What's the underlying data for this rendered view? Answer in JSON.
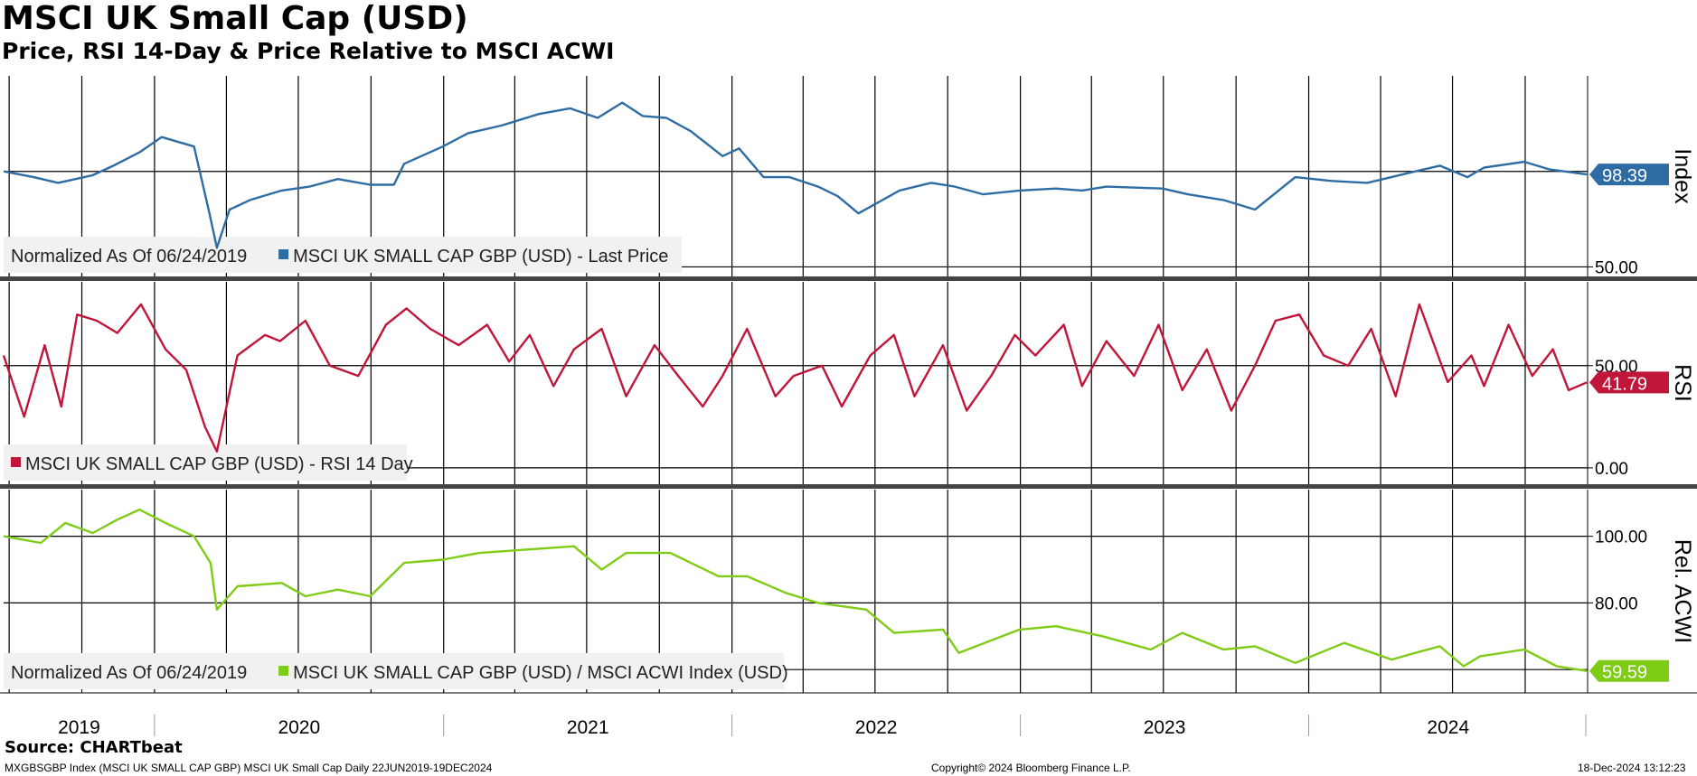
{
  "header": {
    "title": "MSCI UK Small Cap (USD)",
    "subtitle": "Price, RSI 14-Day & Price Relative to MSCI ACWI"
  },
  "footer": {
    "source": "Source: CHARTbeat",
    "left": "MXGBSGBP Index (MSCI UK SMALL CAP GBP) MSCI UK Small Cap  Daily 22JUN2019-19DEC2024",
    "center": "Copyright© 2024 Bloomberg Finance L.P.",
    "right": "18-Dec-2024 13:12:23"
  },
  "colors": {
    "price": "#2e6da4",
    "rsi": "#c0163a",
    "rel": "#7fcc17"
  },
  "chart_data": [
    {
      "type": "line",
      "panel": "price",
      "axis_label": "Index",
      "legend_prefix": "Normalized As Of 06/24/2019",
      "legend": "MSCI UK SMALL CAP GBP (USD) - Last Price",
      "last_value_label": "98.39",
      "ylim": [
        45,
        150
      ],
      "yticks": [
        50
      ],
      "ytick_labels": [
        "50.00"
      ],
      "reference_line": 100,
      "x_start": "2019-06-24",
      "x_end": "2024-12-19",
      "x_year_labels": [
        "2019",
        "2020",
        "2021",
        "2022",
        "2023",
        "2024"
      ],
      "series": [
        {
          "dates": [
            "2019-06-24",
            "2019-08-01",
            "2019-09-01",
            "2019-10-15",
            "2019-11-10",
            "2019-12-13",
            "2020-01-10",
            "2020-02-20",
            "2020-03-10",
            "2020-03-20",
            "2020-04-05",
            "2020-05-01",
            "2020-06-10",
            "2020-07-15",
            "2020-08-20",
            "2020-09-30",
            "2020-10-30",
            "2020-11-12",
            "2020-12-31",
            "2021-02-01",
            "2021-03-15",
            "2021-05-01",
            "2021-06-10",
            "2021-07-15",
            "2021-08-15",
            "2021-09-10",
            "2021-10-10",
            "2021-11-10",
            "2021-12-20",
            "2022-01-10",
            "2022-02-10",
            "2022-03-15",
            "2022-04-20",
            "2022-05-15",
            "2022-06-10",
            "2022-08-01",
            "2022-09-10",
            "2022-10-10",
            "2022-11-15",
            "2022-12-31",
            "2023-02-15",
            "2023-03-20",
            "2023-04-20",
            "2023-06-30",
            "2023-08-01",
            "2023-09-15",
            "2023-10-25",
            "2023-12-15",
            "2024-01-30",
            "2024-03-15",
            "2024-05-15",
            "2024-06-15",
            "2024-07-20",
            "2024-08-10",
            "2024-09-30",
            "2024-11-01",
            "2024-12-18"
          ],
          "values": [
            100,
            97,
            94,
            98,
            103,
            110,
            118,
            113,
            79,
            60,
            80,
            85,
            90,
            92,
            96,
            93,
            93,
            104,
            113,
            120,
            124,
            130,
            133,
            128,
            136,
            129,
            128,
            121,
            108,
            112,
            97,
            97,
            92,
            87,
            78,
            90,
            94,
            92,
            88,
            90,
            91,
            90,
            92,
            91,
            88,
            85,
            80,
            97,
            95,
            94,
            100,
            103,
            97,
            102,
            105,
            101,
            98.39
          ]
        }
      ]
    },
    {
      "type": "line",
      "panel": "rsi",
      "axis_label": "RSI",
      "legend": "MSCI UK SMALL CAP GBP (USD) - RSI 14 Day",
      "last_value_label": "41.79",
      "ylim": [
        -8,
        91
      ],
      "yticks": [
        0,
        50
      ],
      "ytick_labels": [
        "0.00",
        "50.00"
      ],
      "x_start": "2019-06-24",
      "x_end": "2024-12-19",
      "series": [
        {
          "dates": [
            "2019-06-24",
            "2019-07-20",
            "2019-08-15",
            "2019-09-05",
            "2019-09-25",
            "2019-10-20",
            "2019-11-15",
            "2019-12-15",
            "2020-01-15",
            "2020-02-10",
            "2020-03-05",
            "2020-03-20",
            "2020-04-15",
            "2020-05-20",
            "2020-06-08",
            "2020-07-10",
            "2020-08-10",
            "2020-09-15",
            "2020-10-20",
            "2020-11-15",
            "2020-12-15",
            "2021-01-20",
            "2021-02-25",
            "2021-03-25",
            "2021-04-20",
            "2021-05-20",
            "2021-06-15",
            "2021-07-20",
            "2021-08-20",
            "2021-09-25",
            "2021-10-25",
            "2021-11-25",
            "2021-12-20",
            "2022-01-20",
            "2022-02-25",
            "2022-03-20",
            "2022-04-25",
            "2022-05-20",
            "2022-06-25",
            "2022-07-25",
            "2022-08-20",
            "2022-09-25",
            "2022-10-25",
            "2022-11-25",
            "2022-12-25",
            "2023-01-20",
            "2023-02-25",
            "2023-03-20",
            "2023-04-20",
            "2023-05-25",
            "2023-06-25",
            "2023-07-25",
            "2023-08-25",
            "2023-09-25",
            "2023-10-25",
            "2023-11-20",
            "2023-12-20",
            "2024-01-20",
            "2024-02-20",
            "2024-03-20",
            "2024-04-20",
            "2024-05-20",
            "2024-06-25",
            "2024-07-25",
            "2024-08-10",
            "2024-09-10",
            "2024-10-10",
            "2024-11-05",
            "2024-11-25",
            "2024-12-18"
          ],
          "values": [
            55,
            25,
            60,
            30,
            75,
            72,
            66,
            80,
            58,
            48,
            20,
            8,
            55,
            65,
            62,
            72,
            50,
            45,
            70,
            78,
            68,
            60,
            70,
            52,
            65,
            40,
            58,
            68,
            35,
            60,
            45,
            30,
            45,
            68,
            35,
            45,
            50,
            30,
            55,
            65,
            35,
            60,
            28,
            45,
            65,
            55,
            70,
            40,
            62,
            45,
            70,
            38,
            58,
            28,
            50,
            72,
            75,
            55,
            50,
            68,
            35,
            80,
            42,
            55,
            40,
            70,
            45,
            58,
            38,
            41.79
          ]
        }
      ]
    },
    {
      "type": "line",
      "panel": "relative",
      "axis_label": "Rel. ACWI",
      "legend_prefix": "Normalized As Of 06/24/2019",
      "legend": "MSCI UK SMALL CAP GBP (USD) / MSCI ACWI Index (USD)",
      "last_value_label": "59.59",
      "ylim": [
        53,
        114
      ],
      "yticks": [
        80,
        100
      ],
      "ytick_labels": [
        "80.00",
        "100.00"
      ],
      "reference_line": 60,
      "x_start": "2019-06-24",
      "x_end": "2024-12-19",
      "series": [
        {
          "dates": [
            "2019-06-24",
            "2019-08-10",
            "2019-09-10",
            "2019-10-15",
            "2019-11-15",
            "2019-12-13",
            "2020-01-15",
            "2020-02-20",
            "2020-03-12",
            "2020-03-20",
            "2020-04-15",
            "2020-06-10",
            "2020-07-10",
            "2020-08-20",
            "2020-09-30",
            "2020-11-12",
            "2020-12-31",
            "2021-02-15",
            "2021-04-15",
            "2021-06-15",
            "2021-07-20",
            "2021-08-20",
            "2021-10-15",
            "2021-12-15",
            "2022-01-20",
            "2022-03-10",
            "2022-04-20",
            "2022-06-20",
            "2022-07-25",
            "2022-09-25",
            "2022-10-15",
            "2022-12-31",
            "2023-02-15",
            "2023-04-15",
            "2023-06-15",
            "2023-07-25",
            "2023-09-15",
            "2023-10-25",
            "2023-12-15",
            "2024-02-15",
            "2024-04-15",
            "2024-05-15",
            "2024-06-15",
            "2024-07-15",
            "2024-08-05",
            "2024-09-30",
            "2024-11-10",
            "2024-12-18"
          ],
          "values": [
            100,
            98,
            104,
            101,
            105,
            108,
            104,
            100,
            92,
            78,
            85,
            86,
            82,
            84,
            82,
            92,
            93,
            95,
            96,
            97,
            90,
            95,
            95,
            88,
            88,
            83,
            80,
            78,
            71,
            72,
            65,
            72,
            73,
            70,
            66,
            71,
            66,
            67,
            62,
            68,
            63,
            65,
            67,
            61,
            64,
            66,
            61,
            59.59
          ]
        }
      ]
    }
  ]
}
